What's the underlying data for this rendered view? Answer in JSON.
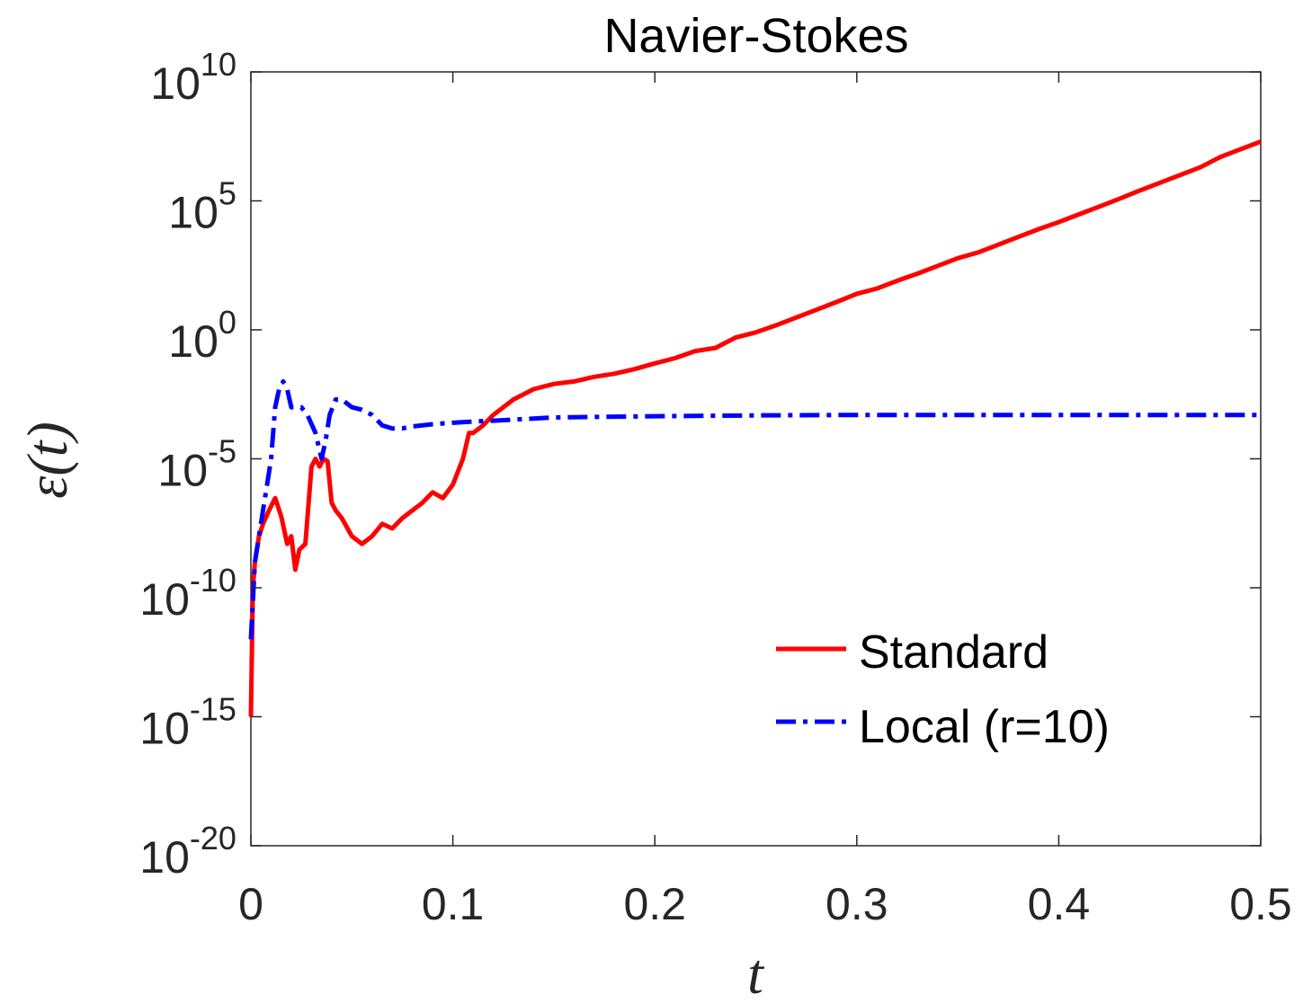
{
  "chart_data": {
    "type": "line",
    "title": "Navier-Stokes",
    "xlabel": "t",
    "ylabel": "ε(t)",
    "xlim": [
      0,
      0.5
    ],
    "ylim": [
      1e-20,
      10000000000.0
    ],
    "yscale": "log",
    "grid": false,
    "legend_position": "lower-right",
    "x_ticks": [
      "0",
      "0.1",
      "0.2",
      "0.3",
      "0.4",
      "0.5"
    ],
    "y_ticks": [
      {
        "base": "10",
        "exp": "10",
        "value": 10
      },
      {
        "base": "10",
        "exp": "5",
        "value": 5
      },
      {
        "base": "10",
        "exp": "0",
        "value": 0
      },
      {
        "base": "10",
        "exp": "-5",
        "value": -5
      },
      {
        "base": "10",
        "exp": "-10",
        "value": -10
      },
      {
        "base": "10",
        "exp": "-15",
        "value": -15
      },
      {
        "base": "10",
        "exp": "-20",
        "value": -20
      }
    ],
    "series": [
      {
        "name": "Standard",
        "color": "#ff0000",
        "style": "solid",
        "x": [
          0.0,
          0.001,
          0.002,
          0.004,
          0.006,
          0.009,
          0.012,
          0.015,
          0.018,
          0.02,
          0.022,
          0.024,
          0.027,
          0.03,
          0.032,
          0.034,
          0.036,
          0.038,
          0.04,
          0.042,
          0.045,
          0.05,
          0.055,
          0.06,
          0.065,
          0.07,
          0.075,
          0.08,
          0.085,
          0.09,
          0.095,
          0.1,
          0.105,
          0.108,
          0.11,
          0.115,
          0.12,
          0.13,
          0.14,
          0.15,
          0.16,
          0.17,
          0.18,
          0.19,
          0.2,
          0.21,
          0.22,
          0.23,
          0.24,
          0.25,
          0.26,
          0.27,
          0.28,
          0.29,
          0.3,
          0.31,
          0.32,
          0.33,
          0.34,
          0.35,
          0.36,
          0.37,
          0.38,
          0.39,
          0.4,
          0.41,
          0.42,
          0.43,
          0.44,
          0.45,
          0.46,
          0.47,
          0.48,
          0.49,
          0.5
        ],
        "y": [
          1e-15,
          1e-10,
          1e-09,
          1e-08,
          3e-08,
          1e-07,
          3e-07,
          6e-08,
          5e-09,
          1e-08,
          5e-10,
          3e-09,
          5e-09,
          5e-06,
          1e-05,
          5e-06,
          1e-05,
          8e-06,
          2e-07,
          1e-07,
          5e-08,
          1e-08,
          5e-09,
          1e-08,
          3e-08,
          2e-08,
          5e-08,
          1e-07,
          2e-07,
          5e-07,
          3e-07,
          1e-06,
          1e-05,
          0.0001,
          0.0001,
          0.0002,
          0.0005,
          0.002,
          0.005,
          0.008,
          0.01,
          0.015,
          0.02,
          0.03,
          0.05,
          0.08,
          0.15,
          0.2,
          0.5,
          0.8,
          1.5,
          3,
          6,
          12,
          25,
          40,
          80,
          150,
          300,
          600,
          1000,
          2000,
          4000,
          8000,
          15000,
          30000,
          60000,
          120000,
          250000,
          500000,
          1000000,
          2000000,
          5000000,
          10000000,
          20000000
        ]
      },
      {
        "name": "Local (r=10)",
        "color": "#0000ff",
        "style": "dashdot",
        "x": [
          0.0,
          0.002,
          0.004,
          0.006,
          0.008,
          0.01,
          0.012,
          0.014,
          0.016,
          0.018,
          0.02,
          0.022,
          0.025,
          0.028,
          0.032,
          0.035,
          0.037,
          0.039,
          0.042,
          0.045,
          0.05,
          0.055,
          0.06,
          0.065,
          0.07,
          0.075,
          0.08,
          0.09,
          0.1,
          0.11,
          0.12,
          0.15,
          0.2,
          0.25,
          0.3,
          0.35,
          0.4,
          0.45,
          0.5
        ],
        "y": [
          1e-12,
          1e-09,
          1e-08,
          1e-07,
          1e-06,
          1e-05,
          0.001,
          0.005,
          0.01,
          0.005,
          0.001,
          0.001,
          0.001,
          0.0005,
          0.0001,
          1e-05,
          5e-05,
          0.0005,
          0.002,
          0.002,
          0.001,
          0.0008,
          0.0005,
          0.0002,
          0.00015,
          0.00015,
          0.00018,
          0.00022,
          0.00025,
          0.00028,
          0.0003,
          0.0004,
          0.00045,
          0.00048,
          0.0005,
          0.0005,
          0.0005,
          0.0005,
          0.0005
        ]
      }
    ]
  }
}
